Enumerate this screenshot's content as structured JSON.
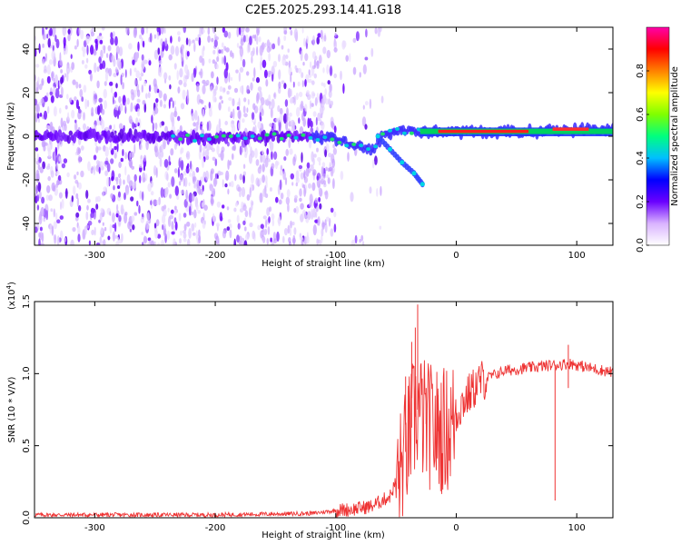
{
  "figure_title": "C2E5.2025.293.14.41.G18",
  "chart_data": [
    {
      "id": "spectrogram",
      "type": "heatmap",
      "title": "C2E5.2025.293.14.41.G18",
      "xlabel": "Height of straight line (km)",
      "ylabel": "Frequency (Hz)",
      "xlim": [
        -350,
        130
      ],
      "ylim": [
        -50,
        50
      ],
      "x_ticks": [
        -300,
        -200,
        -100,
        0,
        100
      ],
      "y_ticks": [
        -40,
        -20,
        0,
        20,
        40
      ],
      "x_tick_labels": [
        "-300",
        "-200",
        "-100",
        "0",
        "100"
      ],
      "y_tick_labels": [
        "-40",
        "-20",
        "0",
        "20",
        "40"
      ],
      "colorbar": {
        "label": "Normalized spectral amplitude",
        "range": [
          0,
          1
        ],
        "ticks": [
          0.0,
          0.2,
          0.4,
          0.6,
          0.8
        ],
        "tick_labels": [
          "0.0",
          "0.2",
          "0.4",
          "0.6",
          "0.8"
        ],
        "colors": [
          "#ffffff",
          "#d9b3ff",
          "#6a00ff",
          "#0000ff",
          "#00bfff",
          "#00ff7f",
          "#7fff00",
          "#ffff00",
          "#ff8000",
          "#ff0000",
          "#ff00aa"
        ]
      },
      "main_line": [
        {
          "x": -350,
          "y": 0
        },
        {
          "x": -300,
          "y": 0
        },
        {
          "x": -250,
          "y": 0
        },
        {
          "x": -200,
          "y": -1
        },
        {
          "x": -150,
          "y": 0
        },
        {
          "x": -120,
          "y": 0
        },
        {
          "x": -100,
          "y": -1
        },
        {
          "x": -90,
          "y": -3
        },
        {
          "x": -80,
          "y": -5
        },
        {
          "x": -70,
          "y": -7
        },
        {
          "x": -60,
          "y": 1
        },
        {
          "x": -50,
          "y": 2
        },
        {
          "x": -40,
          "y": 3
        },
        {
          "x": -30,
          "y": 2
        },
        {
          "x": -20,
          "y": 2
        },
        {
          "x": 0,
          "y": 2
        },
        {
          "x": 50,
          "y": 2
        },
        {
          "x": 100,
          "y": 3
        },
        {
          "x": 130,
          "y": 3
        }
      ],
      "secondary_branch": [
        {
          "x": -65,
          "y": 0
        },
        {
          "x": -55,
          "y": -6
        },
        {
          "x": -45,
          "y": -12
        },
        {
          "x": -35,
          "y": -17
        },
        {
          "x": -28,
          "y": -22
        }
      ]
    },
    {
      "id": "snr",
      "type": "line",
      "title": "",
      "xlabel": "Height of straight line (km)",
      "ylabel": "SNR (10 * V/V)",
      "multiplier_label": "(x10",
      "multiplier_exp": "4",
      "multiplier_close": ")",
      "color": "#ee3333",
      "xlim": [
        -350,
        130
      ],
      "ylim": [
        0,
        1.5
      ],
      "x_ticks": [
        -300,
        -200,
        -100,
        0,
        100
      ],
      "y_ticks": [
        0.0,
        0.5,
        1.0,
        1.5
      ],
      "x_tick_labels": [
        "-300",
        "-200",
        "-100",
        "0",
        "100"
      ],
      "y_tick_labels": [
        "0.0",
        "0.5",
        "1.0",
        "1.5"
      ],
      "envelope": [
        {
          "x": -350,
          "y": 0.02
        },
        {
          "x": -200,
          "y": 0.02
        },
        {
          "x": -120,
          "y": 0.03
        },
        {
          "x": -100,
          "y": 0.05
        },
        {
          "x": -85,
          "y": 0.06
        },
        {
          "x": -70,
          "y": 0.08
        },
        {
          "x": -55,
          "y": 0.15
        },
        {
          "x": -45,
          "y": 0.35
        },
        {
          "x": -38,
          "y": 0.6
        },
        {
          "x": -32,
          "y": 0.75
        },
        {
          "x": -25,
          "y": 0.65
        },
        {
          "x": -15,
          "y": 0.6
        },
        {
          "x": -5,
          "y": 0.62
        },
        {
          "x": 5,
          "y": 0.8
        },
        {
          "x": 20,
          "y": 0.95
        },
        {
          "x": 40,
          "y": 1.02
        },
        {
          "x": 60,
          "y": 1.04
        },
        {
          "x": 80,
          "y": 1.06
        },
        {
          "x": 95,
          "y": 1.07
        },
        {
          "x": 110,
          "y": 1.04
        },
        {
          "x": 130,
          "y": 1.01
        }
      ],
      "peaks": [
        {
          "x": -32,
          "y": 1.48
        },
        {
          "x": -34,
          "y": 1.32
        },
        {
          "x": -37,
          "y": 1.22
        },
        {
          "x": -42,
          "y": 0.98
        },
        {
          "x": -25,
          "y": 0.9
        },
        {
          "x": -15,
          "y": 0.85
        },
        {
          "x": 93,
          "y": 1.2
        },
        {
          "x": 82,
          "y": 0.12
        },
        {
          "x": 93,
          "y": 0.9
        }
      ]
    }
  ]
}
